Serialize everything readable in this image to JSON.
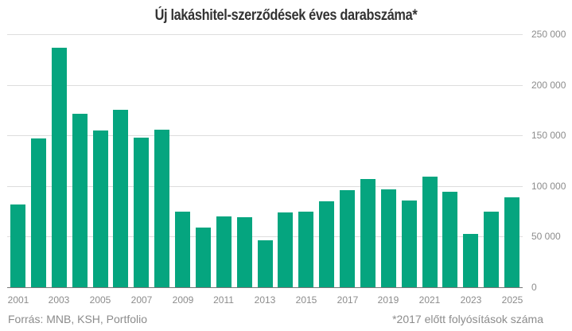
{
  "title": "Új lakáshitel-szerződések éves darabszáma*",
  "footer": {
    "source": "Forrás: MNB, KSH, Portfolio",
    "note": "*2017 előtt folyósítások száma"
  },
  "colors": {
    "bar": "#05a57f",
    "grid": "#dddddd",
    "axis": "#777777",
    "text": "#8c8c8c",
    "title": "#333333"
  },
  "y_ticks": [
    "250 000",
    "200 000",
    "150 000",
    "100 000",
    "50 000",
    "0"
  ],
  "x_ticks": [
    "2001",
    "2003",
    "2005",
    "2007",
    "2009",
    "2011",
    "2013",
    "2015",
    "2017",
    "2019",
    "2021",
    "2023",
    "2025"
  ],
  "chart_data": {
    "type": "bar",
    "title": "Új lakáshitel-szerződések éves darabszáma*",
    "xlabel": "",
    "ylabel": "",
    "ylim": [
      0,
      250000
    ],
    "y_axis_position": "right",
    "grid": true,
    "legend": null,
    "categories": [
      "2001",
      "2002",
      "2003",
      "2004",
      "2005",
      "2006",
      "2007",
      "2008",
      "2009",
      "2010",
      "2011",
      "2012",
      "2013",
      "2014",
      "2015",
      "2016",
      "2017",
      "2018",
      "2019",
      "2020",
      "2021",
      "2022",
      "2023",
      "2024",
      "2025"
    ],
    "values": [
      82000,
      147000,
      237000,
      171000,
      155000,
      175000,
      148000,
      156000,
      75000,
      59000,
      70000,
      69000,
      46000,
      74000,
      75000,
      85000,
      96000,
      107000,
      97000,
      86000,
      109000,
      94000,
      53000,
      75000,
      89000
    ],
    "annotations": [
      "Forrás: MNB, KSH, Portfolio",
      "*2017 előtt folyósítások száma"
    ]
  }
}
